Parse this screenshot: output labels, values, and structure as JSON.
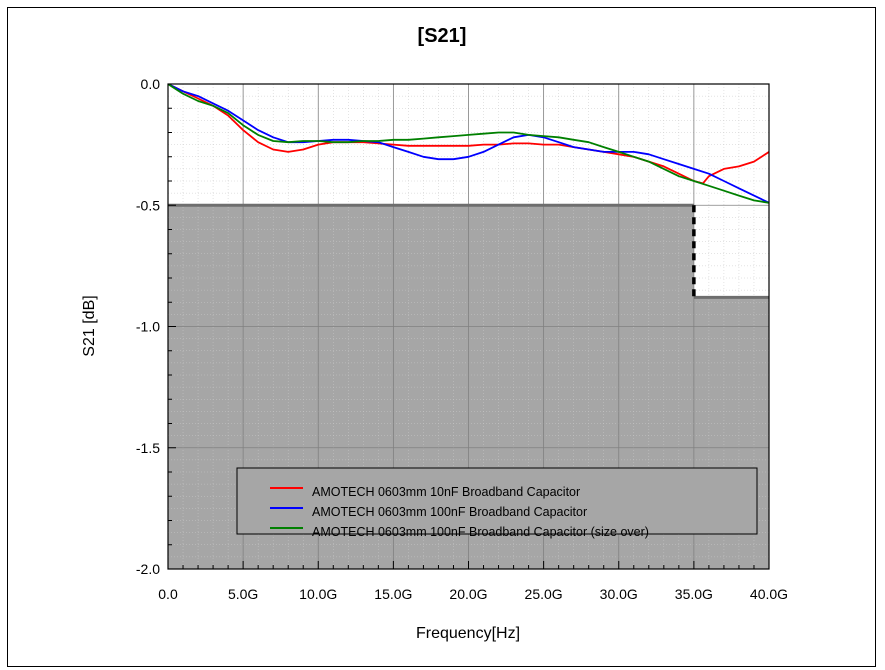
{
  "chart_data": {
    "type": "line",
    "title": "[S21]",
    "xlabel": "Frequency[Hz]",
    "ylabel": "S21 [dB]",
    "xlim": [
      0,
      40
    ],
    "ylim": [
      -2.0,
      0.0
    ],
    "x_ticks": [
      0,
      5,
      10,
      15,
      20,
      25,
      30,
      35,
      40
    ],
    "x_tick_labels": [
      "0.0",
      "5.0G",
      "10.0G",
      "15.0G",
      "20.0G",
      "25.0G",
      "30.0G",
      "35.0G",
      "40.0G"
    ],
    "y_ticks": [
      0.0,
      -0.5,
      -1.0,
      -1.5,
      -2.0
    ],
    "y_tick_labels": [
      "0.0",
      "-0.5",
      "-1.0",
      "-1.5",
      "-2.0"
    ],
    "grid": true,
    "legend_position": "bottom-center",
    "limit_mask": {
      "segments": [
        {
          "x_start": 0,
          "x_end": 35,
          "y": -0.5
        },
        {
          "x_start": 35,
          "x_end": 40,
          "y": -0.88
        }
      ],
      "color": "#a6a6a6"
    },
    "series": [
      {
        "name": "AMOTECH 0603mm 10nF Broadband Capacitor",
        "color": "#ff0000",
        "x": [
          0,
          1,
          2,
          3,
          4,
          5,
          6,
          7,
          8,
          9,
          10,
          11,
          12,
          13,
          14,
          15,
          16,
          17,
          18,
          19,
          20,
          21,
          22,
          23,
          24,
          25,
          26,
          27,
          28,
          29,
          30,
          31,
          32,
          33,
          34,
          35,
          35.6,
          36,
          37,
          38,
          39,
          40
        ],
        "values": [
          0,
          -0.03,
          -0.06,
          -0.09,
          -0.13,
          -0.19,
          -0.24,
          -0.27,
          -0.28,
          -0.27,
          -0.25,
          -0.24,
          -0.24,
          -0.24,
          -0.245,
          -0.25,
          -0.255,
          -0.255,
          -0.255,
          -0.255,
          -0.255,
          -0.25,
          -0.25,
          -0.245,
          -0.245,
          -0.25,
          -0.25,
          -0.26,
          -0.27,
          -0.28,
          -0.29,
          -0.3,
          -0.32,
          -0.34,
          -0.37,
          -0.4,
          -0.41,
          -0.38,
          -0.35,
          -0.34,
          -0.32,
          -0.28
        ]
      },
      {
        "name": "AMOTECH 0603mm 100nF Broadband  Capacitor",
        "color": "#0000ff",
        "x": [
          0,
          1,
          2,
          3,
          4,
          5,
          6,
          7,
          8,
          9,
          10,
          11,
          12,
          13,
          14,
          15,
          16,
          17,
          18,
          19,
          20,
          21,
          22,
          23,
          24,
          25,
          26,
          27,
          28,
          29,
          30,
          31,
          32,
          33,
          34,
          35,
          36,
          37,
          38,
          39,
          40
        ],
        "values": [
          0,
          -0.03,
          -0.05,
          -0.08,
          -0.11,
          -0.15,
          -0.19,
          -0.22,
          -0.24,
          -0.24,
          -0.235,
          -0.23,
          -0.23,
          -0.235,
          -0.24,
          -0.26,
          -0.28,
          -0.3,
          -0.31,
          -0.31,
          -0.3,
          -0.28,
          -0.25,
          -0.22,
          -0.21,
          -0.22,
          -0.24,
          -0.26,
          -0.27,
          -0.28,
          -0.28,
          -0.28,
          -0.29,
          -0.31,
          -0.33,
          -0.35,
          -0.37,
          -0.4,
          -0.43,
          -0.46,
          -0.49
        ]
      },
      {
        "name": "AMOTECH 0603mm 100nF Broadband Capacitor (size over)",
        "color": "#008000",
        "x": [
          0,
          1,
          2,
          3,
          4,
          5,
          6,
          7,
          8,
          9,
          10,
          11,
          12,
          13,
          14,
          15,
          16,
          17,
          18,
          19,
          20,
          21,
          22,
          23,
          24,
          25,
          26,
          27,
          28,
          29,
          30,
          31,
          32,
          33,
          34,
          35,
          36,
          37,
          38,
          39,
          40
        ],
        "values": [
          0,
          -0.04,
          -0.07,
          -0.09,
          -0.12,
          -0.17,
          -0.21,
          -0.235,
          -0.24,
          -0.235,
          -0.235,
          -0.24,
          -0.24,
          -0.235,
          -0.235,
          -0.23,
          -0.23,
          -0.225,
          -0.22,
          -0.215,
          -0.21,
          -0.205,
          -0.2,
          -0.2,
          -0.21,
          -0.215,
          -0.22,
          -0.23,
          -0.24,
          -0.26,
          -0.28,
          -0.3,
          -0.32,
          -0.35,
          -0.38,
          -0.4,
          -0.42,
          -0.44,
          -0.46,
          -0.48,
          -0.49
        ]
      }
    ]
  }
}
